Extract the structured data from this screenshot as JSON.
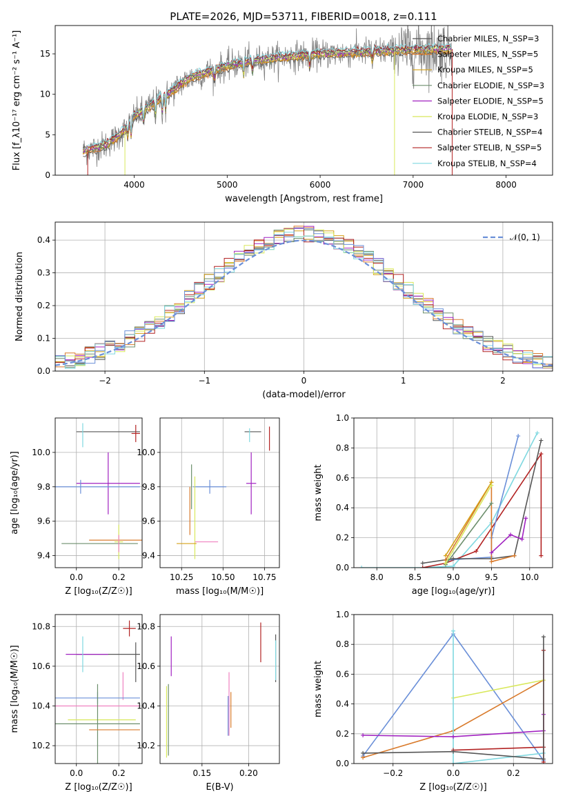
{
  "figure": {
    "title": "PLATE=2026, MJD=53711, FIBERID=0018, z=0.111"
  },
  "colors": {
    "Chabrier MILES": "#555555",
    "Salpeter MILES": "#d97a2b",
    "Kroupa MILES": "#d4a017",
    "Chabrier ELODIE": "#6b8e6b",
    "Salpeter ELODIE": "#a020c0",
    "Kroupa ELODIE": "#d8e85a",
    "Chabrier STELIB": "#555555",
    "Salpeter STELIB": "#b22222",
    "Kroupa STELIB": "#7fd8e0",
    "blue": "#6a8fd8",
    "pink": "#f080c0",
    "normal": "#6a8fd8"
  },
  "chart_data": [
    {
      "id": "spectrum",
      "type": "line",
      "xlabel": "wavelength [Angstrom, rest frame]",
      "ylabel": "Flux [f_λ10⁻¹⁷ erg cm⁻² s⁻¹ A⁻¹]",
      "xlim": [
        3150,
        8500
      ],
      "ylim": [
        0,
        18.5
      ],
      "xticks": [
        4000,
        5000,
        6000,
        7000,
        8000
      ],
      "yticks": [
        0,
        5,
        10,
        15
      ],
      "grid": false,
      "legend_position": "right",
      "legend": [
        "Chabrier MILES, N_SSP=3",
        "Salpeter MILES, N_SSP=5",
        "Kroupa MILES, N_SSP=5",
        "Chabrier ELODIE, N_SSP=3",
        "Salpeter ELODIE, N_SSP=5",
        "Kroupa ELODIE, N_SSP=3",
        "Chabrier STELIB, N_SSP=4",
        "Salpeter STELIB, N_SSP=5",
        "Kroupa STELIB, N_SSP=4"
      ],
      "legend_keys": [
        "Chabrier MILES",
        "Salpeter MILES",
        "Kroupa MILES",
        "Chabrier ELODIE",
        "Salpeter ELODIE",
        "Kroupa ELODIE",
        "Chabrier STELIB",
        "Salpeter STELIB",
        "Kroupa STELIB"
      ],
      "continuum": {
        "x": [
          3450,
          3600,
          3700,
          3800,
          3900,
          4000,
          4100,
          4200,
          4300,
          4400,
          4500,
          4600,
          4800,
          5000,
          5200,
          5400,
          5600,
          5800,
          6000,
          6200,
          6400,
          6600,
          6800,
          7000,
          7200,
          7400
        ],
        "y": [
          3.0,
          3.4,
          3.8,
          4.6,
          5.6,
          7.3,
          8.0,
          8.8,
          9.6,
          10.3,
          11.3,
          12.0,
          12.8,
          13.5,
          14.0,
          14.3,
          14.6,
          14.8,
          15.0,
          15.1,
          15.2,
          15.3,
          15.4,
          15.5,
          15.6,
          15.6
        ]
      }
    },
    {
      "id": "residuals",
      "type": "histogram",
      "xlabel": "(data-model)/error",
      "ylabel": "Normed distribution",
      "xlim": [
        -2.5,
        2.5
      ],
      "ylim": [
        0,
        0.455
      ],
      "xticks": [
        -2,
        -1,
        0,
        1,
        2
      ],
      "yticks": [
        0.0,
        0.1,
        0.2,
        0.3,
        0.4
      ],
      "grid": true,
      "legend_position": "top-right",
      "legend": [
        "𝒩(0, 1)"
      ],
      "bin_width": 0.1,
      "bin_start": -2.5,
      "bin_count": 50
    },
    {
      "id": "age-vs-Z",
      "type": "errorbar",
      "xlabel": "Z [log₁₀(Z/Z☉)]",
      "ylabel": "age  [log₁₀(age/yr)]",
      "xlim": [
        -0.1,
        0.31
      ],
      "ylim": [
        9.33,
        10.2
      ],
      "xticks": [
        0.0,
        0.2
      ],
      "yticks": [
        9.4,
        9.6,
        9.8,
        10.0
      ],
      "grid": true,
      "points": [
        {
          "c": "Chabrier MILES",
          "x": 0.15,
          "y": 10.12,
          "xe": 0.15,
          "ye": 0.0
        },
        {
          "c": "Salpeter STELIB",
          "x": 0.28,
          "y": 10.11,
          "xe": 0.02,
          "ye": 0.05
        },
        {
          "c": "Kroupa STELIB",
          "x": 0.03,
          "y": 10.1,
          "xe": 0.0,
          "ye": 0.07
        },
        {
          "c": "Salpeter ELODIE",
          "x": 0.15,
          "y": 9.82,
          "xe": 0.15,
          "ye": 0.18
        },
        {
          "c": "blue",
          "x": 0.02,
          "y": 9.8,
          "xe": 0.28,
          "ye": 0.04
        },
        {
          "c": "Salpeter MILES",
          "x": 0.19,
          "y": 9.49,
          "xe": 0.13,
          "ye": 0.0
        },
        {
          "c": "Kroupa ELODIE",
          "x": 0.2,
          "y": 9.48,
          "xe": 0.02,
          "ye": 0.1
        },
        {
          "c": "Chabrier ELODIE",
          "x": 0.11,
          "y": 9.47,
          "xe": 0.18,
          "ye": 0.0
        },
        {
          "c": "pink",
          "x": 0.2,
          "y": 9.47,
          "xe": 0.0,
          "ye": 0.05
        }
      ]
    },
    {
      "id": "age-vs-mass",
      "type": "errorbar",
      "xlabel": "mass [log₁₀(M/M☉)]",
      "ylabel": "",
      "xlim": [
        10.12,
        10.84
      ],
      "ylim": [
        9.33,
        10.2
      ],
      "xticks": [
        10.25,
        10.5,
        10.75
      ],
      "yticks": [
        9.4,
        9.6,
        9.8,
        10.0
      ],
      "grid": true,
      "points": [
        {
          "c": "Chabrier MILES",
          "x": 10.68,
          "y": 10.12,
          "xe": 0.05,
          "ye": 0.0
        },
        {
          "c": "Salpeter STELIB",
          "x": 10.78,
          "y": 10.08,
          "xe": 0.0,
          "ye": 0.07
        },
        {
          "c": "Kroupa STELIB",
          "x": 10.66,
          "y": 10.1,
          "xe": 0.0,
          "ye": 0.04
        },
        {
          "c": "Salpeter ELODIE",
          "x": 10.67,
          "y": 9.82,
          "xe": 0.03,
          "ye": 0.18
        },
        {
          "c": "blue",
          "x": 10.42,
          "y": 9.8,
          "xe": 0.1,
          "ye": 0.04
        },
        {
          "c": "Chabrier ELODIE",
          "x": 10.31,
          "y": 9.8,
          "xe": 0.0,
          "ye": 0.13
        },
        {
          "c": "Salpeter MILES",
          "x": 10.3,
          "y": 9.66,
          "xe": 0.0,
          "ye": 0.14
        },
        {
          "c": "Kroupa ELODIE",
          "x": 10.33,
          "y": 9.62,
          "xe": 0.0,
          "ye": 0.24
        },
        {
          "c": "Kroupa MILES",
          "x": 10.28,
          "y": 9.47,
          "xe": 0.06,
          "ye": 0.0
        },
        {
          "c": "pink",
          "x": 10.4,
          "y": 9.48,
          "xe": 0.07,
          "ye": 0.0
        }
      ]
    },
    {
      "id": "weight-vs-age",
      "type": "line",
      "xlabel": "age  [log₁₀(age/yr)]",
      "ylabel": "mass weight",
      "xlim": [
        7.7,
        10.3
      ],
      "ylim": [
        0,
        1.0
      ],
      "xticks": [
        8.0,
        8.5,
        9.0,
        9.5,
        10.0
      ],
      "yticks": [
        0.0,
        0.2,
        0.4,
        0.6,
        0.8,
        1.0
      ],
      "grid": true,
      "series": [
        {
          "c": "Kroupa STELIB",
          "x": [
            7.8,
            8.6,
            9.0,
            9.5,
            10.1
          ],
          "y": [
            0.0,
            0.0,
            0.01,
            0.3,
            0.9
          ]
        },
        {
          "c": "Salpeter STELIB",
          "x": [
            8.6,
            8.9,
            9.3,
            10.15,
            10.15
          ],
          "y": [
            0.0,
            0.03,
            0.11,
            0.76,
            0.08
          ]
        },
        {
          "c": "blue",
          "x": [
            8.9,
            9.5,
            9.5,
            9.85
          ],
          "y": [
            0.05,
            0.07,
            0.2,
            0.88
          ]
        },
        {
          "c": "Chabrier STELIB",
          "x": [
            8.6,
            9.0,
            9.5,
            9.8,
            10.15
          ],
          "y": [
            0.03,
            0.06,
            0.06,
            0.08,
            0.85
          ]
        },
        {
          "c": "Salpeter MILES",
          "x": [
            8.9,
            9.5,
            9.5,
            9.8
          ],
          "y": [
            0.05,
            0.57,
            0.04,
            0.08
          ]
        },
        {
          "c": "Kroupa MILES",
          "x": [
            8.9,
            9.5
          ],
          "y": [
            0.08,
            0.57
          ]
        },
        {
          "c": "Chabrier ELODIE",
          "x": [
            8.9,
            9.5
          ],
          "y": [
            0.02,
            0.43
          ]
        },
        {
          "c": "Kroupa ELODIE",
          "x": [
            8.9,
            9.5
          ],
          "y": [
            0.03,
            0.55
          ]
        },
        {
          "c": "Salpeter ELODIE",
          "x": [
            9.5,
            9.75,
            9.9,
            9.95
          ],
          "y": [
            0.1,
            0.22,
            0.19,
            0.33
          ]
        }
      ]
    },
    {
      "id": "mass-vs-Z",
      "type": "errorbar",
      "xlabel": "Z [log₁₀(Z/Z☉)]",
      "ylabel": "mass [log₁₀(M/M☉)]",
      "xlim": [
        -0.1,
        0.31
      ],
      "ylim": [
        10.11,
        10.86
      ],
      "xticks": [
        0.0,
        0.2
      ],
      "yticks": [
        10.2,
        10.4,
        10.6,
        10.8
      ],
      "grid": true,
      "points": [
        {
          "c": "Salpeter STELIB",
          "x": 0.25,
          "y": 10.79,
          "xe": 0.03,
          "ye": 0.04
        },
        {
          "c": "Chabrier MILES",
          "x": 0.15,
          "y": 10.66,
          "xe": 0.15,
          "ye": 0.0
        },
        {
          "c": "Salpeter ELODIE",
          "x": 0.05,
          "y": 10.66,
          "xe": 0.1,
          "ye": 0.0
        },
        {
          "c": "Kroupa STELIB",
          "x": 0.03,
          "y": 10.66,
          "xe": 0.0,
          "ye": 0.09
        },
        {
          "c": "Chabrier STELIB",
          "x": 0.28,
          "y": 10.62,
          "xe": 0.0,
          "ye": 0.1
        },
        {
          "c": "pink",
          "x": 0.22,
          "y": 10.5,
          "xe": 0.0,
          "ye": 0.07
        },
        {
          "c": "blue",
          "x": 0.1,
          "y": 10.44,
          "xe": 0.2,
          "ye": 0.03
        },
        {
          "c": "pink",
          "x": 0.1,
          "y": 10.4,
          "xe": 0.2,
          "ye": 0.0
        },
        {
          "c": "Kroupa ELODIE",
          "x": 0.12,
          "y": 10.33,
          "xe": 0.16,
          "ye": 0.0
        },
        {
          "c": "Chabrier ELODIE",
          "x": 0.1,
          "y": 10.31,
          "xe": 0.2,
          "ye": 0.2
        },
        {
          "c": "Salpeter MILES",
          "x": 0.18,
          "y": 10.28,
          "xe": 0.12,
          "ye": 0.0
        }
      ]
    },
    {
      "id": "mass-vs-EBV",
      "type": "errorbar",
      "xlabel": "E(B-V)",
      "ylabel": "",
      "xlim": [
        0.105,
        0.233
      ],
      "ylim": [
        10.11,
        10.86
      ],
      "xticks": [
        0.15,
        0.2
      ],
      "yticks": [
        10.2,
        10.4,
        10.6,
        10.8
      ],
      "grid": true,
      "points": [
        {
          "c": "Salpeter STELIB",
          "x": 0.213,
          "y": 10.72,
          "xe": 0.0,
          "ye": 0.1
        },
        {
          "c": "Salpeter ELODIE",
          "x": 0.117,
          "y": 10.65,
          "xe": 0.0,
          "ye": 0.1
        },
        {
          "c": "Chabrier STELIB",
          "x": 0.229,
          "y": 10.64,
          "xe": 0.0,
          "ye": 0.12
        },
        {
          "c": "Kroupa STELIB",
          "x": 0.229,
          "y": 10.63,
          "xe": 0.0,
          "ye": 0.1
        },
        {
          "c": "pink",
          "x": 0.179,
          "y": 10.41,
          "xe": 0.0,
          "ye": 0.16
        },
        {
          "c": "blue",
          "x": 0.178,
          "y": 10.35,
          "xe": 0.0,
          "ye": 0.1
        },
        {
          "c": "Salpeter MILES",
          "x": 0.181,
          "y": 10.38,
          "xe": 0.0,
          "ye": 0.09
        },
        {
          "c": "Kroupa ELODIE",
          "x": 0.112,
          "y": 10.32,
          "xe": 0.0,
          "ye": 0.18
        },
        {
          "c": "Chabrier ELODIE",
          "x": 0.114,
          "y": 10.33,
          "xe": 0.0,
          "ye": 0.18
        }
      ]
    },
    {
      "id": "weight-vs-Z",
      "type": "line",
      "xlabel": "Z [log₁₀(Z/Z☉)]",
      "ylabel": "mass weight",
      "xlim": [
        -0.33,
        0.33
      ],
      "ylim": [
        0,
        1.0
      ],
      "xticks": [
        -0.2,
        0.0,
        0.2
      ],
      "yticks": [
        0.0,
        0.2,
        0.4,
        0.6,
        0.8,
        1.0
      ],
      "grid": true,
      "series": [
        {
          "c": "blue",
          "x": [
            -0.3,
            0.0,
            0.3
          ],
          "y": [
            0.05,
            0.87,
            0.02
          ]
        },
        {
          "c": "Salpeter MILES",
          "x": [
            -0.3,
            0.0,
            0.0,
            0.3
          ],
          "y": [
            0.04,
            0.22,
            0.22,
            0.56
          ]
        },
        {
          "c": "Kroupa ELODIE",
          "x": [
            0.0,
            0.3
          ],
          "y": [
            0.44,
            0.56
          ]
        },
        {
          "c": "Kroupa STELIB",
          "x": [
            0.0,
            0.0,
            0.3
          ],
          "y": [
            0.89,
            0.0,
            0.07
          ]
        },
        {
          "c": "Salpeter ELODIE",
          "x": [
            -0.3,
            0.0,
            0.3,
            0.3
          ],
          "y": [
            0.19,
            0.18,
            0.22,
            0.33
          ]
        },
        {
          "c": "Salpeter STELIB",
          "x": [
            0.0,
            0.3,
            0.3,
            0.3
          ],
          "y": [
            0.09,
            0.11,
            0.76,
            0.01
          ]
        },
        {
          "c": "Chabrier STELIB",
          "x": [
            -0.3,
            0.0,
            0.3,
            0.3
          ],
          "y": [
            0.07,
            0.08,
            0.03,
            0.85
          ]
        }
      ]
    }
  ]
}
